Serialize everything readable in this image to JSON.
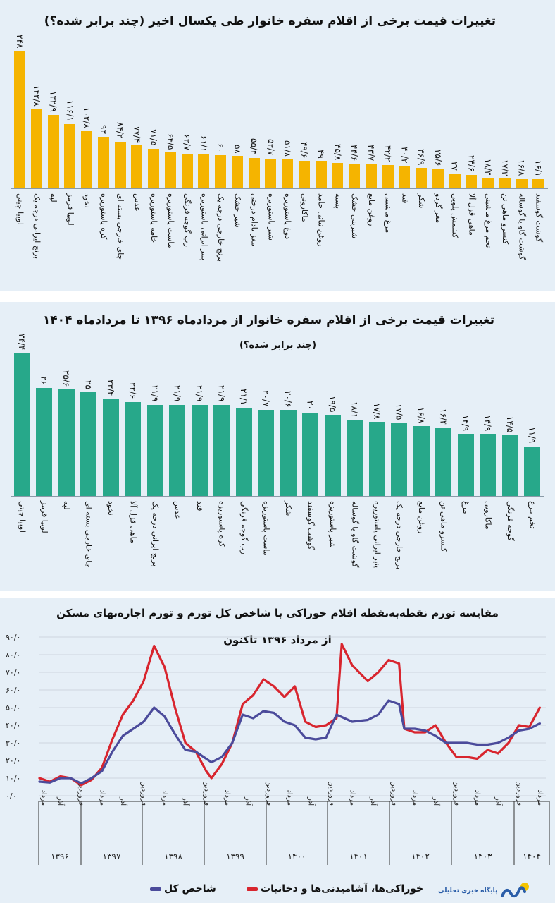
{
  "colors": {
    "bar1": "#f5b400",
    "bar2": "#27a88a",
    "food": "#d8252e",
    "general": "#4b4b9b",
    "panel": "#e6eff7"
  },
  "chart_data": [
    {
      "type": "bar",
      "title": "تغییرات قیمت برخی از اقلام سفره خانوار طی یکسال اخیر (چند برابر شده؟)",
      "categories": [
        "لوبیا چیتی",
        "برنج ایرانی درجه یک",
        "لپه",
        "لوبیا قرمز",
        "نخود",
        "کره پاستوریزه",
        "چای خارجی بسته ای",
        "عدس",
        "خامه پاستوریزه",
        "ماست پاستوریزه",
        "رب گوجه فرنگی",
        "پنیر ایرانی پاستوریزه",
        "برنج خارجی درجه یک",
        "شیر خشک",
        "مغز بادام درختی",
        "شیر پاستوریزه",
        "دوغ پاستوریزه",
        "ماکارونی",
        "روغن نباتی جامد",
        "پسته",
        "شیرینی خشک",
        "روغن مایع",
        "مرغ ماشینی",
        "قند",
        "شکر",
        "مغز گردو",
        "کشمش پلویی",
        "ماهی قزل آلا",
        "تخم مرغ ماشینی",
        "کنسرو ماهی تن",
        "گوشت گاو یا گوساله",
        "گوشت گوسفند"
      ],
      "values": [
        248,
        142.8,
        132.9,
        116.1,
        102.8,
        93,
        84.2,
        77.4,
        71.5,
        64.5,
        62.7,
        61.1,
        60,
        58,
        55.3,
        53.7,
        51.8,
        49.6,
        49,
        45.8,
        44.6,
        43.7,
        42.2,
        40.2,
        36.9,
        35.6,
        27,
        24.6,
        18.3,
        17.3,
        16.8,
        16.1
      ],
      "data_labels": true,
      "ylim": [
        0,
        248
      ]
    },
    {
      "type": "bar",
      "title": "تغییرات قیمت برخی از اقلام سفره خانوار از مردادماه ۱۳۹۶ تا مردادماه ۱۴۰۴",
      "subtitle": "(چند برابر شده؟)",
      "categories": [
        "لوبیا چیتی",
        "لوبیا قرمز",
        "لپه",
        "چای خارجی بسته ای",
        "نخود",
        "ماهی قزل آلا",
        "برنج ایرانی درجه یک",
        "عدس",
        "قند",
        "کره پاستوریزه",
        "رب گوجه فرنگی",
        "ماست پاستوریزه",
        "شکر",
        "گوشت گوسفند",
        "شیر پاستوریزه",
        "گوشت گاو یا گوساله",
        "پنیر ایرانی پاستوریزه",
        "برنج خارجی درجه یک",
        "روغن مایع",
        "کنسرو ماهی تن",
        "مرغ",
        "ماکارونی",
        "گوجه فرنگی",
        "تخم مرغ"
      ],
      "values": [
        34.4,
        26,
        25.6,
        25,
        23.4,
        22.6,
        21.9,
        21.9,
        21.9,
        21.9,
        21.1,
        20.7,
        20.6,
        20,
        19.5,
        18.1,
        17.8,
        17.5,
        16.8,
        16.4,
        14.9,
        14.9,
        14.5,
        11.9
      ],
      "data_labels": true,
      "ylim": [
        0,
        34.4
      ]
    },
    {
      "type": "line",
      "title": "مقایسه تورم نقطه‌به‌نقطه اقلام خوراکی با شاخص کل تورم و تورم اجاره‌بهای مسکن",
      "subtitle": "از مرداد ۱۳۹۶ تاکنون",
      "ylim": [
        0,
        90
      ],
      "yticks": [
        0,
        10,
        20,
        30,
        40,
        50,
        60,
        70,
        80,
        90
      ],
      "grid": true,
      "legend_position": "bottom",
      "x_ticks": [
        {
          "date": "1396-05",
          "label": "مرداد"
        },
        {
          "date": "1396-09",
          "label": "آذر"
        },
        {
          "date": "1397-01",
          "label": "فروردین"
        },
        {
          "date": "1397-05",
          "label": "مرداد"
        },
        {
          "date": "1397-09",
          "label": "آذر"
        },
        {
          "date": "1398-01",
          "label": "فروردین"
        },
        {
          "date": "1398-05",
          "label": "مرداد"
        },
        {
          "date": "1398-09",
          "label": "آذر"
        },
        {
          "date": "1399-01",
          "label": "فروردین"
        },
        {
          "date": "1399-05",
          "label": "مرداد"
        },
        {
          "date": "1399-09",
          "label": "آذر"
        },
        {
          "date": "1400-01",
          "label": "فروردین"
        },
        {
          "date": "1400-05",
          "label": "مرداد"
        },
        {
          "date": "1400-09",
          "label": "آذر"
        },
        {
          "date": "1401-01",
          "label": "فروردین"
        },
        {
          "date": "1401-05",
          "label": "مرداد"
        },
        {
          "date": "1401-09",
          "label": "آذر"
        },
        {
          "date": "1402-01",
          "label": "فروردین"
        },
        {
          "date": "1402-05",
          "label": "مرداد"
        },
        {
          "date": "1402-09",
          "label": "آذر"
        },
        {
          "date": "1403-01",
          "label": "فروردین"
        },
        {
          "date": "1403-05",
          "label": "مرداد"
        },
        {
          "date": "1403-09",
          "label": "آذر"
        },
        {
          "date": "1404-01",
          "label": "فروردین"
        },
        {
          "date": "1404-05",
          "label": "مرداد"
        }
      ],
      "years": [
        "۱۳۹۶",
        "۱۳۹۷",
        "۱۳۹۸",
        "۱۳۹۹",
        "۱۴۰۰",
        "۱۴۰۱",
        "۱۴۰۲",
        "۱۴۰۳",
        "۱۴۰۴"
      ],
      "series": [
        {
          "name": "خوراکی‌ها، آشامیدنی‌ها و دخانیات",
          "color": "#d8252e",
          "points": [
            [
              "1396-05",
              10
            ],
            [
              "1396-07",
              8
            ],
            [
              "1396-09",
              11
            ],
            [
              "1396-11",
              10
            ],
            [
              "1397-01",
              6
            ],
            [
              "1397-03",
              9
            ],
            [
              "1397-05",
              16
            ],
            [
              "1397-07",
              32
            ],
            [
              "1397-09",
              46
            ],
            [
              "1397-11",
              54
            ],
            [
              "1398-01",
              65
            ],
            [
              "1398-03",
              85
            ],
            [
              "1398-05",
              73
            ],
            [
              "1398-07",
              50
            ],
            [
              "1398-09",
              30
            ],
            [
              "1398-11",
              25
            ],
            [
              "1399-01",
              14
            ],
            [
              "1399-02",
              10
            ],
            [
              "1399-04",
              18
            ],
            [
              "1399-06",
              30
            ],
            [
              "1399-08",
              52
            ],
            [
              "1399-10",
              57
            ],
            [
              "1399-12",
              66
            ],
            [
              "1400-02",
              62
            ],
            [
              "1400-04",
              56
            ],
            [
              "1400-06",
              62
            ],
            [
              "1400-08",
              42
            ],
            [
              "1400-10",
              39
            ],
            [
              "1400-12",
              40
            ],
            [
              "1401-02",
              44
            ],
            [
              "1401-03",
              86
            ],
            [
              "1401-05",
              74
            ],
            [
              "1401-08",
              65
            ],
            [
              "1401-10",
              70
            ],
            [
              "1401-12",
              77
            ],
            [
              "1402-02",
              75
            ],
            [
              "1402-03",
              38
            ],
            [
              "1402-05",
              36
            ],
            [
              "1402-07",
              36
            ],
            [
              "1402-09",
              40
            ],
            [
              "1402-11",
              30
            ],
            [
              "1403-01",
              22
            ],
            [
              "1403-03",
              22
            ],
            [
              "1403-05",
              21
            ],
            [
              "1403-07",
              26
            ],
            [
              "1403-09",
              24
            ],
            [
              "1403-11",
              30
            ],
            [
              "1404-01",
              40
            ],
            [
              "1404-03",
              39
            ],
            [
              "1404-05",
              50
            ]
          ]
        },
        {
          "name": "شاخص کل",
          "color": "#4b4b9b",
          "points": [
            [
              "1396-05",
              8
            ],
            [
              "1396-07",
              7.5
            ],
            [
              "1396-09",
              10
            ],
            [
              "1396-11",
              10
            ],
            [
              "1397-01",
              7
            ],
            [
              "1397-03",
              10
            ],
            [
              "1397-05",
              14
            ],
            [
              "1397-07",
              25
            ],
            [
              "1397-09",
              34
            ],
            [
              "1397-11",
              38
            ],
            [
              "1398-01",
              42
            ],
            [
              "1398-03",
              50
            ],
            [
              "1398-05",
              45
            ],
            [
              "1398-07",
              35
            ],
            [
              "1398-09",
              26
            ],
            [
              "1398-11",
              25
            ],
            [
              "1399-01",
              21
            ],
            [
              "1399-02",
              19
            ],
            [
              "1399-04",
              22
            ],
            [
              "1399-06",
              30
            ],
            [
              "1399-08",
              46
            ],
            [
              "1399-10",
              44
            ],
            [
              "1399-12",
              48
            ],
            [
              "1400-02",
              47
            ],
            [
              "1400-04",
              42
            ],
            [
              "1400-06",
              40
            ],
            [
              "1400-08",
              33
            ],
            [
              "1400-10",
              32
            ],
            [
              "1400-12",
              33
            ],
            [
              "1401-02",
              46
            ],
            [
              "1401-05",
              42
            ],
            [
              "1401-08",
              43
            ],
            [
              "1401-10",
              46
            ],
            [
              "1401-12",
              54
            ],
            [
              "1402-02",
              52
            ],
            [
              "1402-03",
              38
            ],
            [
              "1402-05",
              38
            ],
            [
              "1402-07",
              37
            ],
            [
              "1402-09",
              34
            ],
            [
              "1402-11",
              30
            ],
            [
              "1403-01",
              30
            ],
            [
              "1403-03",
              30
            ],
            [
              "1403-05",
              29
            ],
            [
              "1403-07",
              29
            ],
            [
              "1403-09",
              30
            ],
            [
              "1403-11",
              33
            ],
            [
              "1404-01",
              37
            ],
            [
              "1404-03",
              38
            ],
            [
              "1404-05",
              41
            ]
          ]
        }
      ]
    }
  ],
  "logo": {
    "text": "پایگاه خبری تحلیلی"
  }
}
